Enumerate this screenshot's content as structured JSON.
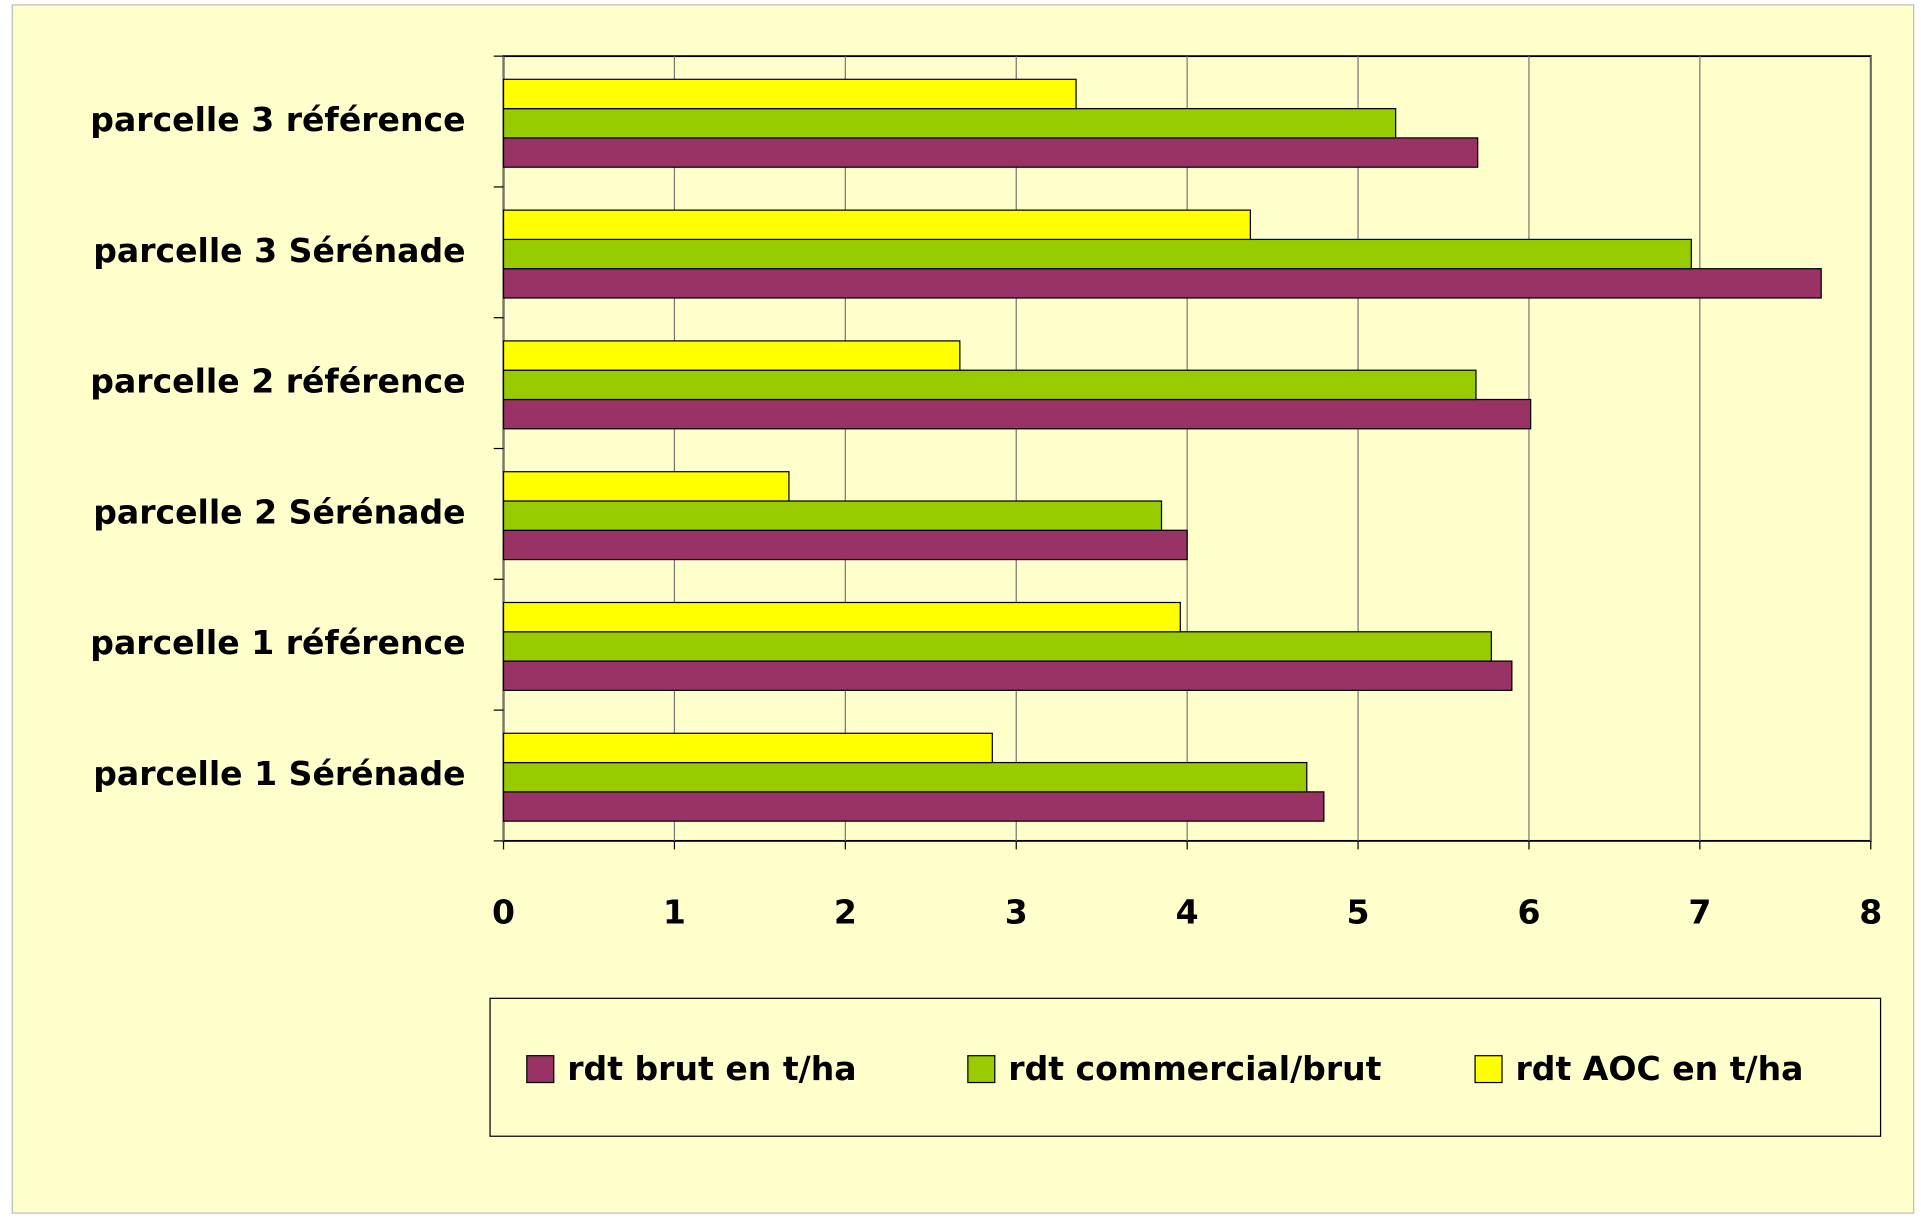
{
  "chart_data": {
    "type": "barh",
    "categories": [
      "parcelle 3 référence",
      "parcelle 3 Sérénade",
      "parcelle 2 référence",
      "parcelle 2 Sérénade",
      "parcelle 1 référence",
      "parcelle 1 Sérénade"
    ],
    "series": [
      {
        "name": "rdt brut en t/ha",
        "color": "#993366",
        "values": [
          5.7,
          7.71,
          6.01,
          4.0,
          5.9,
          4.8
        ]
      },
      {
        "name": "rdt commercial/brut",
        "color": "#99cc00",
        "values": [
          5.22,
          6.95,
          5.69,
          3.85,
          5.78,
          4.7
        ]
      },
      {
        "name": "rdt AOC en t/ha",
        "color": "#ffff00",
        "values": [
          3.35,
          4.37,
          2.67,
          1.67,
          3.96,
          2.86
        ]
      }
    ],
    "xlim": [
      0,
      8
    ],
    "xticks": [
      0,
      1,
      2,
      3,
      4,
      5,
      6,
      7,
      8
    ],
    "grid": true,
    "legend": "bottom"
  }
}
